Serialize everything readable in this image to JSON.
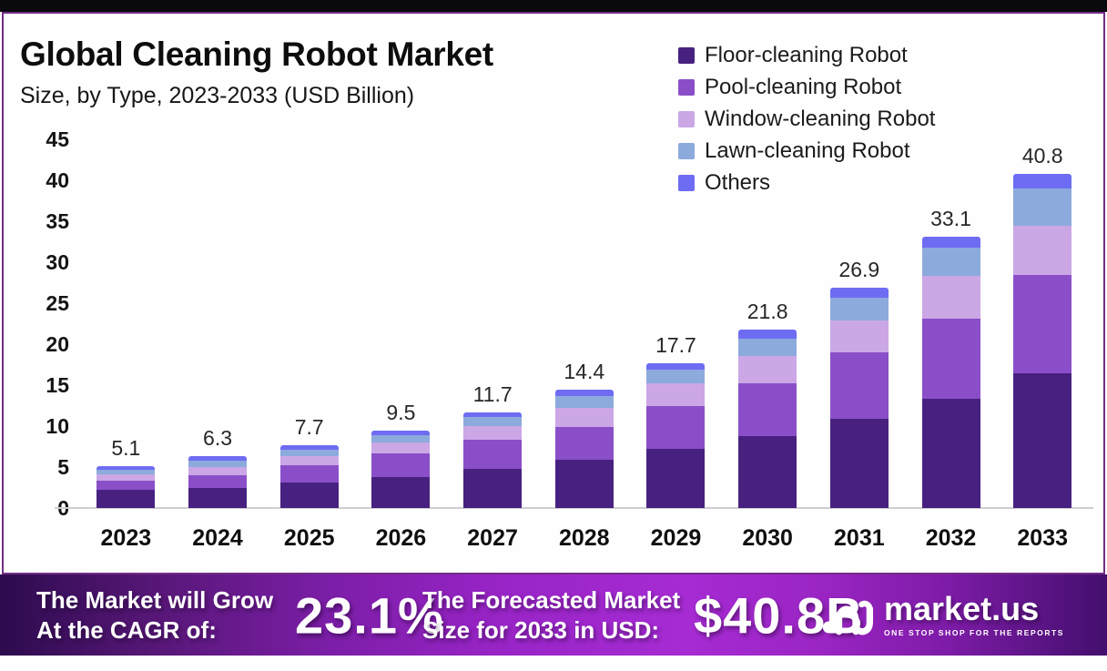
{
  "chart_data": {
    "type": "bar",
    "stacked": true,
    "title": "Global Cleaning Robot Market",
    "subtitle": "Size, by Type, 2023-2033 (USD Billion)",
    "categories": [
      "2023",
      "2024",
      "2025",
      "2026",
      "2027",
      "2028",
      "2029",
      "2030",
      "2031",
      "2032",
      "2033"
    ],
    "series": [
      {
        "name": "Floor-cleaning Robot",
        "color": "#482180",
        "values": [
          2.2,
          2.5,
          3.1,
          3.8,
          4.8,
          5.9,
          7.2,
          8.8,
          10.9,
          13.3,
          16.5
        ]
      },
      {
        "name": "Pool-cleaning Robot",
        "color": "#8a4fc8",
        "values": [
          1.1,
          1.5,
          2.1,
          2.9,
          3.5,
          4.0,
          5.3,
          6.4,
          8.1,
          9.8,
          11.9
        ]
      },
      {
        "name": "Window-cleaning Robot",
        "color": "#cba7e6",
        "values": [
          0.8,
          1.0,
          1.1,
          1.3,
          1.7,
          2.3,
          2.7,
          3.4,
          3.9,
          5.2,
          6.1
        ]
      },
      {
        "name": "Lawn-cleaning Robot",
        "color": "#8daadd",
        "values": [
          0.6,
          0.8,
          0.8,
          0.9,
          1.1,
          1.5,
          1.7,
          2.1,
          2.8,
          3.5,
          4.5
        ]
      },
      {
        "name": "Others",
        "color": "#6e6cf2",
        "values": [
          0.4,
          0.5,
          0.6,
          0.6,
          0.6,
          0.7,
          0.8,
          1.1,
          1.2,
          1.3,
          1.8
        ]
      }
    ],
    "totals": [
      5.1,
      6.3,
      7.7,
      9.5,
      11.7,
      14.4,
      17.7,
      21.8,
      26.9,
      33.1,
      40.8
    ],
    "ylim": [
      0,
      45
    ],
    "yticks": [
      0,
      5,
      10,
      15,
      20,
      25,
      30,
      35,
      40,
      45
    ],
    "grid": false,
    "legend_position": "top-right"
  },
  "banner": {
    "cagr_label_line1": "The Market will Grow",
    "cagr_label_line2": "At the CAGR of:",
    "cagr_value": "23.1%",
    "forecast_label_line1": "The Forecasted Market",
    "forecast_label_line2": "Size for 2033 in USD:",
    "forecast_value": "$40.8B",
    "brand_name": "market.us",
    "brand_tagline": "ONE STOP SHOP FOR THE REPORTS"
  },
  "colors": {
    "panel_border": "#712d85",
    "top_strip": "#0a0a0e",
    "banner_gradient_start": "#2d0b4e",
    "banner_gradient_mid": "#a62bd3",
    "banner_gradient_end": "#430f6d",
    "axis_line": "#cfcdd1"
  }
}
